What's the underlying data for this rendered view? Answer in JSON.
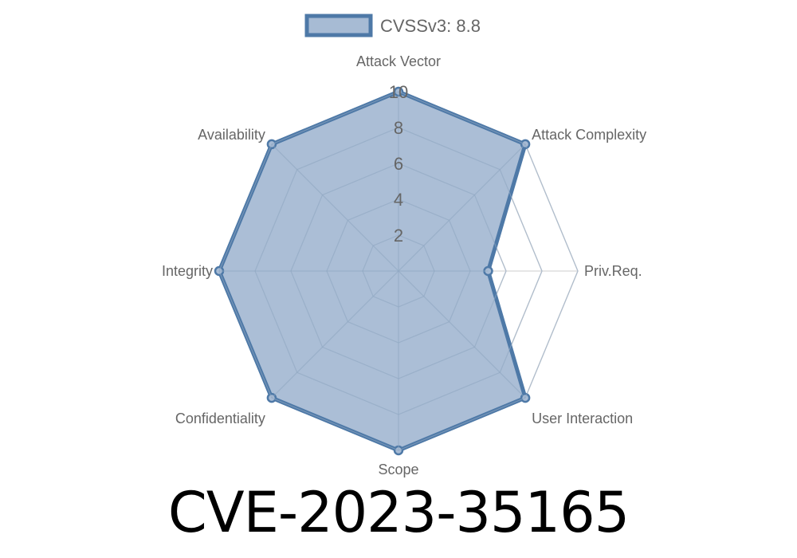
{
  "chart_data": {
    "type": "radar",
    "legend": {
      "position": "top",
      "series_name": "CVSSv3: 8.8"
    },
    "axes": [
      "Attack Vector",
      "Attack Complexity",
      "Priv.Req.",
      "User Interaction",
      "Scope",
      "Confidentiality",
      "Integrity",
      "Availability"
    ],
    "series": [
      {
        "name": "CVSSv3: 8.8",
        "values": [
          10,
          10,
          5,
          10,
          10,
          10,
          10,
          10
        ]
      }
    ],
    "rlim": [
      0,
      10
    ],
    "ticks": [
      "2",
      "4",
      "6",
      "8",
      "10"
    ],
    "grid": true,
    "colors": {
      "line": "#4e79a7",
      "fill": "#a7bbd4",
      "grid": "#dddddd"
    }
  },
  "title": "CVE-2023-35165"
}
